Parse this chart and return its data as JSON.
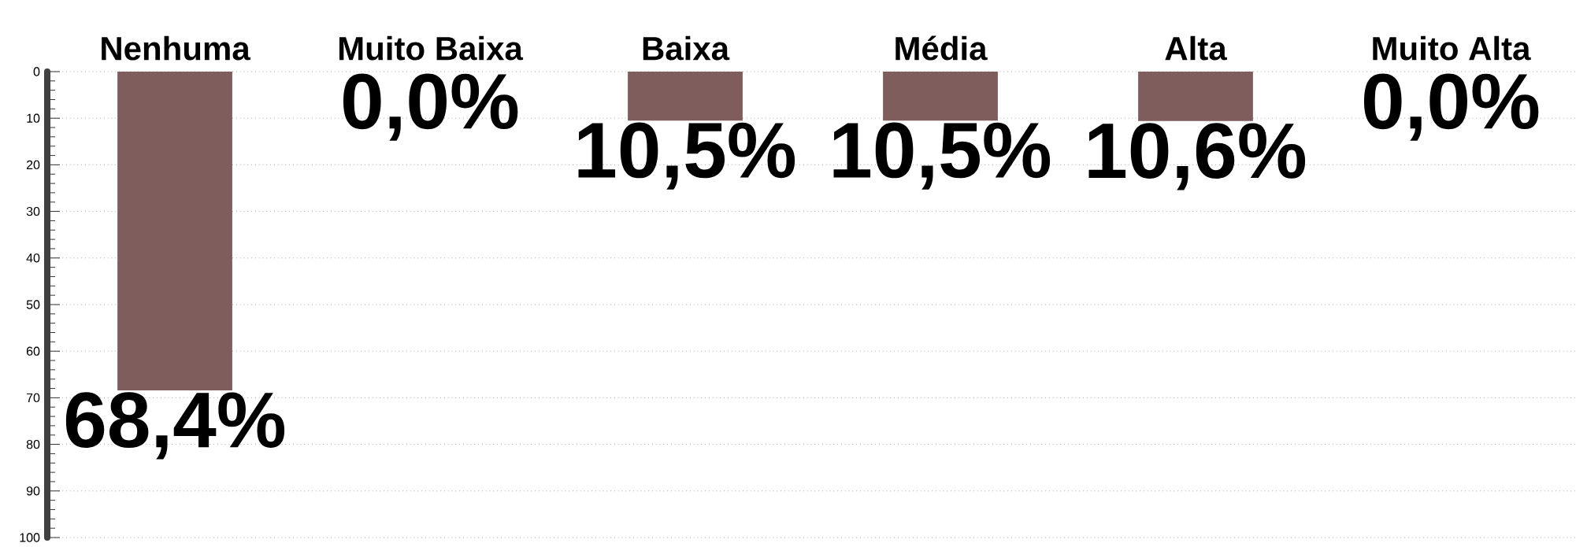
{
  "chart_data": {
    "type": "bar",
    "categories": [
      "Nenhuma",
      "Muito Baixa",
      "Baixa",
      "Média",
      "Alta",
      "Muito Alta"
    ],
    "values": [
      68.4,
      0.0,
      10.5,
      10.5,
      10.6,
      0.0
    ],
    "value_labels": [
      "68,4%",
      "0,0%",
      "10,5%",
      "10,5%",
      "10,6%",
      "0,0%"
    ],
    "color": "#7f5d5d",
    "ylim": [
      100,
      0
    ],
    "yticks": [
      0,
      10,
      20,
      30,
      40,
      50,
      60,
      70,
      80,
      90,
      100
    ],
    "grid": "y"
  }
}
